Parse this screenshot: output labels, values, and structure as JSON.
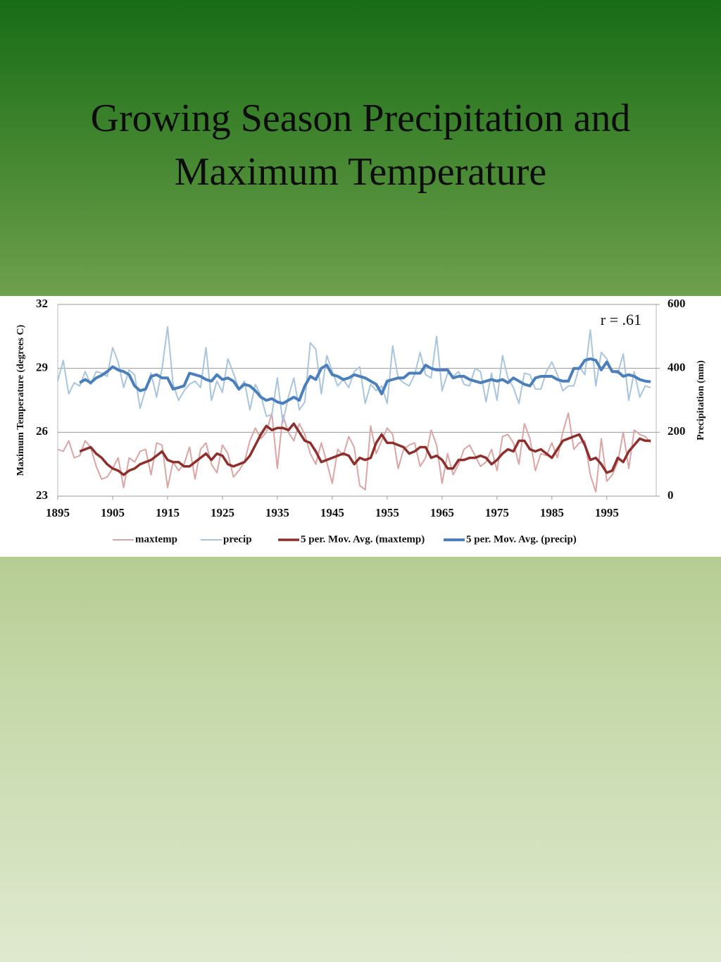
{
  "chart_data": {
    "type": "line",
    "title": "Growing Season Precipitation and Maximum Temperature",
    "ylabel": "Maximum Temperature (degrees C)",
    "y2label": "Precipitation (mm)",
    "annotation": "r = .61",
    "xlim": [
      1895,
      2004
    ],
    "xticks": [
      1895,
      1905,
      1915,
      1925,
      1935,
      1945,
      1955,
      1965,
      1975,
      1985,
      1995
    ],
    "ylim": [
      23,
      32
    ],
    "yticks": [
      23,
      26,
      29,
      32
    ],
    "y2lim": [
      0,
      600
    ],
    "y2ticks": [
      0,
      200,
      400,
      600
    ],
    "grid": true,
    "legend": "bottom",
    "x": [
      1895,
      1896,
      1897,
      1898,
      1899,
      1900,
      1901,
      1902,
      1903,
      1904,
      1905,
      1906,
      1907,
      1908,
      1909,
      1910,
      1911,
      1912,
      1913,
      1914,
      1915,
      1916,
      1917,
      1918,
      1919,
      1920,
      1921,
      1922,
      1923,
      1924,
      1925,
      1926,
      1927,
      1928,
      1929,
      1930,
      1931,
      1932,
      1933,
      1934,
      1935,
      1936,
      1937,
      1938,
      1939,
      1940,
      1941,
      1942,
      1943,
      1944,
      1945,
      1946,
      1947,
      1948,
      1949,
      1950,
      1951,
      1952,
      1953,
      1954,
      1955,
      1956,
      1957,
      1958,
      1959,
      1960,
      1961,
      1962,
      1963,
      1964,
      1965,
      1966,
      1967,
      1968,
      1969,
      1970,
      1971,
      1972,
      1973,
      1974,
      1975,
      1976,
      1977,
      1978,
      1979,
      1980,
      1981,
      1982,
      1983,
      1984,
      1985,
      1986,
      1987,
      1988,
      1989,
      1990,
      1991,
      1992,
      1993,
      1994,
      1995,
      1996,
      1997,
      1998,
      1999,
      2000,
      2001,
      2002,
      2003
    ],
    "series": [
      {
        "name": "maxtemp",
        "color": "#dca4a4",
        "width": 2,
        "values": [
          25.2,
          25.1,
          25.6,
          24.8,
          24.9,
          25.6,
          25.3,
          24.4,
          23.8,
          23.9,
          24.3,
          24.8,
          23.4,
          24.8,
          24.6,
          25.1,
          25.2,
          24.0,
          25.5,
          25.4,
          23.4,
          24.6,
          24.2,
          24.5,
          25.3,
          23.8,
          25.2,
          25.5,
          24.5,
          24.1,
          25.4,
          25.0,
          23.9,
          24.2,
          24.6,
          25.6,
          26.2,
          25.7,
          26.0,
          26.9,
          24.3,
          26.8,
          26.0,
          25.6,
          26.4,
          25.9,
          25.0,
          24.5,
          25.5,
          24.6,
          23.6,
          25.2,
          24.9,
          25.8,
          25.3,
          23.5,
          23.3,
          26.3,
          25.0,
          25.6,
          26.2,
          25.9,
          24.3,
          25.2,
          25.4,
          25.5,
          24.4,
          24.8,
          26.1,
          25.4,
          23.6,
          25.0,
          24.0,
          24.5,
          25.2,
          25.4,
          24.9,
          24.4,
          24.6,
          25.2,
          24.2,
          25.8,
          25.9,
          25.5,
          24.5,
          26.4,
          25.7,
          24.2,
          25.0,
          24.9,
          25.5,
          24.8,
          26.0,
          26.9,
          25.2,
          25.5,
          25.6,
          24.0,
          23.2,
          25.7,
          23.7,
          24.0,
          24.6,
          26.0,
          24.3,
          26.1,
          25.9,
          25.8,
          25.5
        ]
      },
      {
        "name": "precip",
        "color": "#a9c5dd",
        "width": 2,
        "axis": "y2",
        "values": [
          360,
          425,
          320,
          355,
          345,
          390,
          350,
          390,
          385,
          375,
          465,
          420,
          340,
          395,
          380,
          275,
          335,
          385,
          310,
          400,
          530,
          350,
          300,
          330,
          350,
          360,
          340,
          465,
          300,
          360,
          325,
          430,
          385,
          335,
          360,
          270,
          350,
          315,
          250,
          255,
          370,
          230,
          310,
          370,
          270,
          295,
          480,
          460,
          320,
          440,
          390,
          345,
          365,
          340,
          390,
          405,
          290,
          350,
          330,
          345,
          290,
          470,
          370,
          355,
          345,
          380,
          450,
          380,
          370,
          500,
          330,
          385,
          375,
          390,
          350,
          345,
          400,
          390,
          295,
          385,
          300,
          440,
          370,
          340,
          290,
          385,
          380,
          335,
          335,
          390,
          420,
          380,
          330,
          345,
          345,
          405,
          380,
          520,
          345,
          450,
          430,
          390,
          385,
          445,
          300,
          390,
          310,
          345,
          340
        ]
      },
      {
        "name": "5 per. Mov. Avg. (maxtemp)",
        "color": "#8e2f2c",
        "width": 3.5,
        "values": [
          null,
          null,
          null,
          null,
          25.1,
          25.2,
          25.3,
          25.0,
          24.8,
          24.5,
          24.3,
          24.2,
          24.0,
          24.2,
          24.3,
          24.5,
          24.6,
          24.7,
          24.9,
          25.1,
          24.7,
          24.6,
          24.6,
          24.4,
          24.4,
          24.6,
          24.8,
          25.0,
          24.7,
          25.0,
          24.9,
          24.5,
          24.4,
          24.5,
          24.6,
          24.9,
          25.4,
          25.9,
          26.3,
          26.1,
          26.2,
          26.2,
          26.1,
          26.4,
          26.0,
          25.6,
          25.5,
          25.1,
          24.6,
          24.7,
          24.8,
          24.9,
          25.0,
          24.9,
          24.5,
          24.8,
          24.7,
          24.8,
          25.5,
          25.9,
          25.5,
          25.5,
          25.4,
          25.3,
          25.0,
          25.1,
          25.3,
          25.3,
          24.8,
          24.9,
          24.7,
          24.3,
          24.3,
          24.7,
          24.7,
          24.8,
          24.8,
          24.9,
          24.8,
          24.5,
          24.7,
          25.0,
          25.2,
          25.1,
          25.6,
          25.6,
          25.2,
          25.1,
          25.2,
          25.0,
          24.8,
          25.2,
          25.6,
          25.7,
          25.8,
          25.9,
          25.4,
          24.7,
          24.8,
          24.5,
          24.1,
          24.2,
          24.8,
          24.6,
          25.1,
          25.4,
          25.7,
          25.6,
          25.6
        ]
      },
      {
        "name": "5 per. Mov. Avg. (precip)",
        "color": "#4a7fbb",
        "width": 4,
        "axis": "y2",
        "values": [
          null,
          null,
          null,
          null,
          355,
          365,
          355,
          370,
          378,
          390,
          405,
          395,
          390,
          380,
          345,
          330,
          335,
          375,
          380,
          370,
          370,
          335,
          340,
          345,
          385,
          380,
          375,
          365,
          360,
          380,
          365,
          370,
          360,
          335,
          350,
          345,
          330,
          310,
          300,
          305,
          295,
          290,
          300,
          310,
          300,
          345,
          375,
          365,
          400,
          410,
          380,
          375,
          365,
          370,
          380,
          375,
          370,
          360,
          350,
          320,
          360,
          365,
          370,
          370,
          385,
          385,
          385,
          410,
          400,
          395,
          395,
          395,
          370,
          375,
          375,
          365,
          360,
          355,
          360,
          365,
          360,
          365,
          355,
          370,
          360,
          350,
          345,
          370,
          375,
          375,
          375,
          365,
          360,
          360,
          400,
          400,
          425,
          430,
          425,
          395,
          420,
          390,
          390,
          375,
          380,
          375,
          365,
          360,
          358
        ]
      }
    ]
  }
}
